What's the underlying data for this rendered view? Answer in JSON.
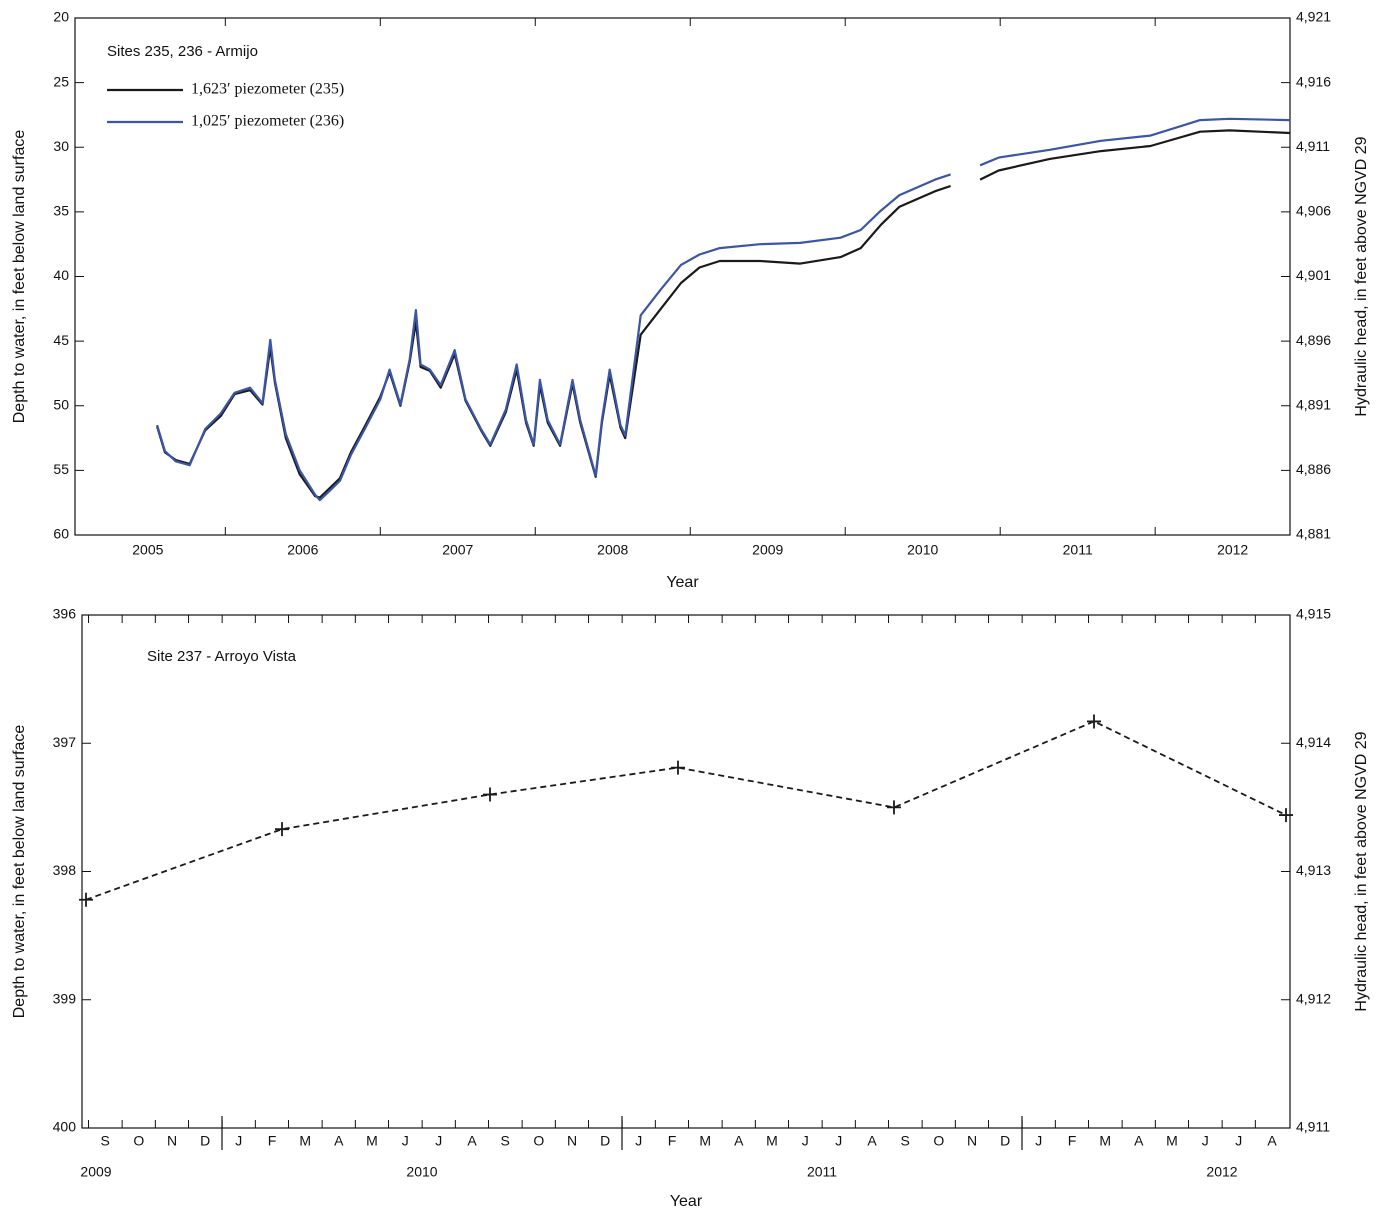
{
  "chart_data": [
    {
      "type": "line",
      "title": "Sites 235, 236 - Armijo",
      "x_label": "Year",
      "y_label": "Depth to water, in feet below land surface",
      "y2_label": "Hydraulic head, in feet above NGVD 29",
      "x": [
        2005.56,
        2005.61,
        2005.68,
        2005.77,
        2005.87,
        2005.97,
        2006.06,
        2006.16,
        2006.24,
        2006.29,
        2006.32,
        2006.39,
        2006.48,
        2006.58,
        2006.61,
        2006.68,
        2006.74,
        2006.81,
        2006.9,
        2007.0,
        2007.06,
        2007.13,
        2007.19,
        2007.23,
        2007.26,
        2007.32,
        2007.39,
        2007.48,
        2007.55,
        2007.65,
        2007.71,
        2007.81,
        2007.88,
        2007.94,
        2007.99,
        2008.03,
        2008.08,
        2008.16,
        2008.24,
        2008.29,
        2008.39,
        2008.43,
        2008.48,
        2008.55,
        2008.58,
        2008.68,
        2008.81,
        2008.94,
        2009.06,
        2009.19,
        2009.45,
        2009.71,
        2009.97,
        2010.1,
        2010.23,
        2010.35,
        2010.58,
        2010.68,
        2010.77,
        2010.87,
        2010.99,
        2011.32,
        2011.65,
        2011.97,
        2012.29,
        2012.48,
        2012.87
      ],
      "series": [
        {
          "name": "1,623′ piezometer (235)",
          "color": "#1a1a1a",
          "values": [
            51.6,
            53.6,
            54.2,
            54.5,
            51.9,
            50.8,
            49.1,
            48.8,
            49.9,
            45.5,
            48.2,
            52.5,
            55.3,
            57.0,
            57.1,
            56.3,
            55.6,
            53.6,
            51.6,
            49.3,
            47.4,
            50.0,
            46.6,
            43.5,
            47.0,
            47.3,
            48.6,
            46.0,
            49.6,
            51.9,
            53.1,
            50.5,
            47.2,
            51.3,
            53.1,
            48.4,
            51.3,
            53.1,
            48.3,
            51.3,
            55.5,
            51.3,
            47.6,
            51.7,
            52.5,
            44.5,
            42.5,
            40.5,
            39.3,
            38.8,
            38.8,
            39.0,
            38.5,
            37.8,
            36.0,
            34.6,
            33.4,
            33.0,
            null,
            32.5,
            31.8,
            30.9,
            30.3,
            29.9,
            28.8,
            28.7,
            28.9
          ]
        },
        {
          "name": "1,025′ piezometer (236)",
          "color": "#3a56a5",
          "values": [
            51.5,
            53.5,
            54.3,
            54.6,
            51.8,
            50.6,
            49,
            48.6,
            49.8,
            44.9,
            48,
            52.2,
            55,
            56.9,
            57.3,
            56.5,
            55.8,
            53.8,
            51.8,
            49.5,
            47.2,
            49.9,
            46.4,
            42.6,
            46.8,
            47.2,
            48.4,
            45.7,
            49.5,
            51.8,
            53,
            50.3,
            46.8,
            51.1,
            53,
            48,
            51.1,
            53,
            48,
            51.1,
            55.4,
            51.1,
            47.2,
            51.5,
            52.3,
            43,
            41,
            39.1,
            38.3,
            37.8,
            37.5,
            37.4,
            37,
            36.4,
            34.9,
            33.7,
            32.5,
            32.1,
            null,
            31.4,
            30.8,
            30.2,
            29.5,
            29.1,
            27.9,
            27.8,
            27.9
          ]
        }
      ],
      "xlim": [
        2005.03,
        2012.87
      ],
      "xticks": [
        {
          "value": 2005.5,
          "label": "2005"
        },
        {
          "value": 2006.5,
          "label": "2006"
        },
        {
          "value": 2007.5,
          "label": "2007"
        },
        {
          "value": 2008.5,
          "label": "2008"
        },
        {
          "value": 2009.5,
          "label": "2009"
        },
        {
          "value": 2010.5,
          "label": "2010"
        },
        {
          "value": 2011.5,
          "label": "2011"
        },
        {
          "value": 2012.5,
          "label": "2012"
        }
      ],
      "ylim": [
        60,
        20
      ],
      "yticks": [
        20,
        25,
        30,
        35,
        40,
        45,
        50,
        55,
        60
      ],
      "y2lim": [
        4881,
        4921
      ],
      "y2ticks": [
        {
          "value": 4921,
          "label": "4,921"
        },
        {
          "value": 4916,
          "label": "4,916"
        },
        {
          "value": 4911,
          "label": "4,911"
        },
        {
          "value": 4906,
          "label": "4,906"
        },
        {
          "value": 4901,
          "label": "4,901"
        },
        {
          "value": 4896,
          "label": "4,896"
        },
        {
          "value": 4891,
          "label": "4,891"
        },
        {
          "value": 4886,
          "label": "4,886"
        },
        {
          "value": 4881,
          "label": "4,881"
        }
      ],
      "legend": "upper left"
    },
    {
      "type": "line",
      "title": "Site 237 - Arroyo Vista",
      "x_label": "Year",
      "y_label": "Depth to water, in feet below land surface",
      "y2_label": "Hydraulic head, in feet above NGVD 29",
      "x": [
        2009.66,
        2010.15,
        2010.67,
        2011.14,
        2011.68,
        2012.18,
        2012.66
      ],
      "series": [
        {
          "color": "#1a1a1a",
          "line_style": "dashed",
          "marker": "+",
          "values": [
            398.22,
            397.67,
            397.4,
            397.19,
            397.5,
            396.83,
            397.56
          ]
        }
      ],
      "xlim": [
        2009.65,
        2012.67
      ],
      "xticks": [
        {
          "value": 2009.708,
          "label": "S"
        },
        {
          "value": 2009.792,
          "label": "O"
        },
        {
          "value": 2009.875,
          "label": "N"
        },
        {
          "value": 2009.958,
          "label": "D"
        },
        {
          "value": 2010.042,
          "label": "J"
        },
        {
          "value": 2010.125,
          "label": "F"
        },
        {
          "value": 2010.208,
          "label": "M"
        },
        {
          "value": 2010.292,
          "label": "A"
        },
        {
          "value": 2010.375,
          "label": "M"
        },
        {
          "value": 2010.458,
          "label": "J"
        },
        {
          "value": 2010.542,
          "label": "J"
        },
        {
          "value": 2010.625,
          "label": "A"
        },
        {
          "value": 2010.708,
          "label": "S"
        },
        {
          "value": 2010.792,
          "label": "O"
        },
        {
          "value": 2010.875,
          "label": "N"
        },
        {
          "value": 2010.958,
          "label": "D"
        },
        {
          "value": 2011.042,
          "label": "J"
        },
        {
          "value": 2011.125,
          "label": "F"
        },
        {
          "value": 2011.208,
          "label": "M"
        },
        {
          "value": 2011.292,
          "label": "A"
        },
        {
          "value": 2011.375,
          "label": "M"
        },
        {
          "value": 2011.458,
          "label": "J"
        },
        {
          "value": 2011.542,
          "label": "J"
        },
        {
          "value": 2011.625,
          "label": "A"
        },
        {
          "value": 2011.708,
          "label": "S"
        },
        {
          "value": 2011.792,
          "label": "O"
        },
        {
          "value": 2011.875,
          "label": "N"
        },
        {
          "value": 2011.958,
          "label": "D"
        },
        {
          "value": 2012.042,
          "label": "J"
        },
        {
          "value": 2012.125,
          "label": "F"
        },
        {
          "value": 2012.208,
          "label": "M"
        },
        {
          "value": 2012.292,
          "label": "A"
        },
        {
          "value": 2012.375,
          "label": "M"
        },
        {
          "value": 2012.458,
          "label": "J"
        },
        {
          "value": 2012.542,
          "label": "J"
        },
        {
          "value": 2012.625,
          "label": "A"
        }
      ],
      "year_ticks": [
        2010,
        2011,
        2012
      ],
      "year_labels": [
        {
          "value": 2009.66,
          "label": "2009"
        },
        {
          "value": 2010.5,
          "label": "2010"
        },
        {
          "value": 2011.5,
          "label": "2011"
        },
        {
          "value": 2012.5,
          "label": "2012"
        }
      ],
      "ylim": [
        400,
        396
      ],
      "yticks": [
        396,
        397,
        398,
        399,
        400
      ],
      "y2lim": [
        4911,
        4915
      ],
      "y2ticks": [
        {
          "value": 4915,
          "label": "4,915"
        },
        {
          "value": 4914,
          "label": "4,914"
        },
        {
          "value": 4913,
          "label": "4,913"
        },
        {
          "value": 4912,
          "label": "4,912"
        },
        {
          "value": 4911,
          "label": "4,911"
        }
      ]
    }
  ]
}
